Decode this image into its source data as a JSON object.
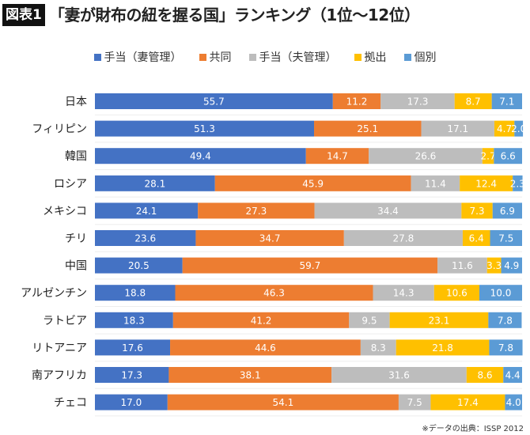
{
  "badge": "図表1",
  "title": "「妻が財布の紐を握る国」ランキング（1位〜12位）",
  "source": "※データの出典：ISSP 2012",
  "chart_data": {
    "type": "bar",
    "orientation": "horizontal",
    "stacked": true,
    "xlim": [
      0,
      100
    ],
    "legend_position": "top",
    "categories": [
      "日本",
      "フィリピン",
      "韓国",
      "ロシア",
      "メキシコ",
      "チリ",
      "中国",
      "アルゼンチン",
      "ラトビア",
      "リトアニア",
      "南アフリカ",
      "チェコ"
    ],
    "series": [
      {
        "name": "手当（妻管理）",
        "color": "#4472C4",
        "values": [
          55.7,
          51.3,
          49.4,
          28.1,
          24.1,
          23.6,
          20.5,
          18.8,
          18.3,
          17.6,
          17.3,
          17.0
        ]
      },
      {
        "name": "共同",
        "color": "#ED7D31",
        "values": [
          11.2,
          25.1,
          14.7,
          45.9,
          27.3,
          34.7,
          59.7,
          46.3,
          41.2,
          44.6,
          38.1,
          54.1
        ]
      },
      {
        "name": "手当（夫管理）",
        "color": "#BDBDBD",
        "values": [
          17.3,
          17.1,
          26.6,
          11.4,
          34.4,
          27.8,
          11.6,
          14.3,
          9.5,
          8.3,
          31.6,
          7.5
        ]
      },
      {
        "name": "拠出",
        "color": "#FFC000",
        "values": [
          8.7,
          4.7,
          2.7,
          12.4,
          7.3,
          6.4,
          3.3,
          10.6,
          23.1,
          21.8,
          8.6,
          17.4
        ]
      },
      {
        "name": "個別",
        "color": "#5B9BD5",
        "values": [
          7.1,
          2.0,
          6.6,
          2.3,
          6.9,
          7.5,
          4.9,
          10.0,
          7.8,
          7.8,
          4.4,
          4.0
        ]
      }
    ]
  }
}
